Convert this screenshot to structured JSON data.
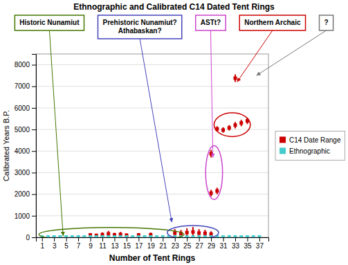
{
  "chart_data": {
    "type": "scatter",
    "title": "Ethnographic and Calibrated C14 Dated Tent Rings",
    "x_label": "Number of Tent Rings",
    "y_label": "Calibrated Years B.P.",
    "xlim": [
      0.0,
      38.5
    ],
    "ylim": [
      0,
      8500
    ],
    "xticks": [
      1,
      3,
      5,
      7,
      9,
      11,
      13,
      15,
      17,
      19,
      21,
      23,
      25,
      27,
      29,
      31,
      33,
      35,
      37
    ],
    "yticks": [
      0,
      1000,
      2000,
      3000,
      4000,
      5000,
      6000,
      7000,
      8000
    ],
    "grid": true,
    "legend": "right",
    "series": [
      {
        "name": "C14 Date Range",
        "color": "#cc0000",
        "marker": "square",
        "x": [
          9,
          10,
          11,
          12,
          13,
          14,
          15,
          17,
          19,
          23,
          24,
          25,
          26,
          27,
          28,
          29,
          29,
          30,
          29,
          30,
          31,
          32,
          33,
          34,
          35,
          33
        ],
        "values": [
          110,
          90,
          125,
          160,
          115,
          135,
          100,
          110,
          120,
          200,
          180,
          220,
          250,
          200,
          185,
          150,
          2050,
          2150,
          3875,
          5025,
          4975,
          5075,
          5200,
          5300,
          5400,
          7375
        ],
        "errors": [
          90,
          70,
          105,
          140,
          95,
          115,
          80,
          90,
          100,
          180,
          160,
          200,
          230,
          180,
          165,
          130,
          150,
          150,
          175,
          125,
          125,
          125,
          150,
          150,
          150,
          175
        ]
      },
      {
        "name": "Ethnographic",
        "color": "#44cccc",
        "marker": "square",
        "x": [
          1,
          2,
          3,
          4,
          5,
          6,
          7,
          8,
          9,
          10,
          11,
          12,
          13,
          14,
          15,
          16,
          17,
          18,
          19,
          20,
          21,
          22,
          23,
          24,
          25,
          26,
          27,
          28,
          29,
          30,
          31,
          32,
          33,
          34,
          35,
          36,
          37
        ],
        "values": [
          15,
          15,
          15,
          15,
          15,
          15,
          15,
          15,
          15,
          15,
          15,
          15,
          15,
          15,
          15,
          15,
          15,
          15,
          15,
          15,
          15,
          15,
          15,
          15,
          15,
          15,
          15,
          15,
          15,
          15,
          15,
          15,
          15,
          15,
          15,
          15,
          15
        ]
      }
    ],
    "ellipses": [
      {
        "cx": 12.5,
        "cy": 130,
        "w": 24,
        "h": 650,
        "color": "#447700"
      },
      {
        "cx": 26.0,
        "cy": 220,
        "w": 8.5,
        "h": 650,
        "color": "#4444bb"
      },
      {
        "cx": 29.5,
        "cy": 3000,
        "w": 2.8,
        "h": 2500,
        "color": "#cc44cc"
      },
      {
        "cx": 32.5,
        "cy": 5220,
        "w": 6.0,
        "h": 1100,
        "color": "#cc0000"
      }
    ],
    "annotations": [
      {
        "text": "Historic Nunamiut",
        "color": "#447700",
        "x": 4.5,
        "y": 60
      },
      {
        "text": "Prehistoric Nunamiut?\nAthabaskan?",
        "color": "#4444bb",
        "x": 22.5,
        "y": 700
      },
      {
        "text": "ASTt?",
        "color": "#cc44cc",
        "x": 29.3,
        "y": 3700
      },
      {
        "text": "Northern Archaic",
        "color": "#cc0000",
        "x": 33.3,
        "y": 7200
      },
      {
        "text": "?",
        "color": "#777777",
        "x": 36.5,
        "y": 7500
      }
    ]
  }
}
